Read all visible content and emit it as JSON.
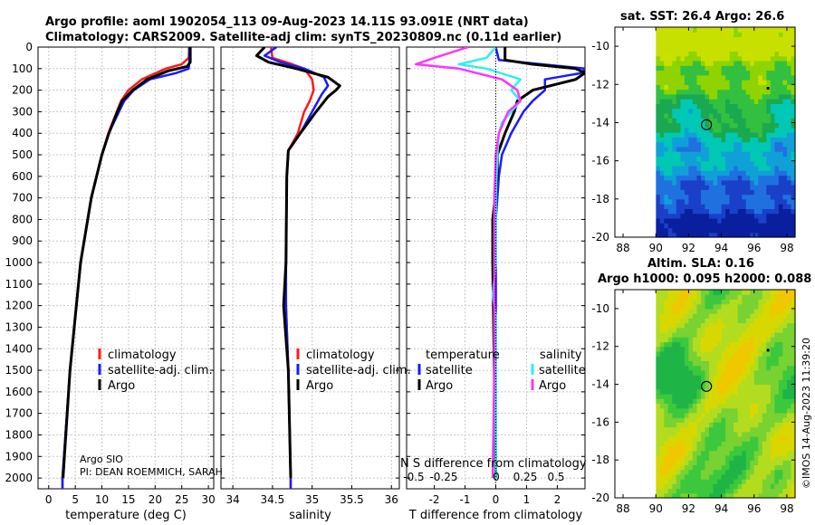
{
  "header": {
    "title1": "Argo profile: aoml 1902054_113 09-Aug-2023 14.11S 93.091E (NRT data)",
    "title2": "Climatology: CARS2009. Satellite-adj clim: synTS_20230809.nc (0.11d earlier)"
  },
  "maps": {
    "sst_title": "sat. SST: 26.4 Argo: 26.6",
    "sla_title1": "Altim. SLA: 0.16",
    "sla_title2": "Argo h1000: 0.095 h2000: 0.088",
    "lon_ticks": [
      "88",
      "90",
      "92",
      "94",
      "96",
      "98"
    ],
    "lat_ticks": [
      "-10",
      "-12",
      "-14",
      "-16",
      "-18",
      "-20"
    ],
    "argo_lon": 93.091,
    "argo_lat": -14.11
  },
  "footer": {
    "credit": "©IMOS 14-Aug-2023 11:39:20",
    "argo_label": "Argo SIO",
    "pi_label": "PI: DEAN ROEMMICH, SARAH",
    "overlap_text": "N S difference from climatology",
    "overlap_ticks": [
      "-0.5",
      "-0.25",
      "0",
      "0.25",
      "0.5"
    ]
  },
  "colors": {
    "climatology": "#ff1a1a",
    "satellite": "#1a1aff",
    "argo": "#000000",
    "argo_sal": "#ff33ff",
    "sat_sal": "#33eeee"
  },
  "chart_data": [
    {
      "type": "line",
      "name": "temperature",
      "xlabel": "temperature (deg C)",
      "xlim": [
        -2,
        31
      ],
      "ylim": [
        2050,
        0
      ],
      "xticks": [
        "0",
        "5",
        "10",
        "15",
        "20",
        "25",
        "30"
      ],
      "yticks": [
        "0",
        "100",
        "200",
        "300",
        "400",
        "500",
        "600",
        "700",
        "800",
        "900",
        "1000",
        "1100",
        "1200",
        "1300",
        "1400",
        "1500",
        "1600",
        "1700",
        "1800",
        "1900",
        "2000"
      ],
      "legend": [
        "climatology",
        "satellite-adj. clim.",
        "Argo"
      ],
      "series": [
        {
          "name": "climatology",
          "depth": [
            0,
            50,
            80,
            100,
            150,
            200,
            250,
            300,
            400,
            500,
            700,
            1000,
            1500,
            2000,
            2050
          ],
          "values": [
            26.4,
            26.3,
            25,
            22,
            17.5,
            15,
            13.6,
            12.8,
            11.2,
            10,
            8,
            6,
            4,
            2.6,
            2.6
          ]
        },
        {
          "name": "satellite-adj. clim.",
          "depth": [
            0,
            70,
            100,
            120,
            150,
            200,
            250,
            300,
            400,
            500,
            700,
            1000,
            1500,
            2000,
            2050
          ],
          "values": [
            26.4,
            26.4,
            26.3,
            24,
            19,
            16,
            14.2,
            13.2,
            11.3,
            10,
            8,
            6,
            4,
            2.6,
            2.6
          ]
        },
        {
          "name": "Argo",
          "depth": [
            0,
            70,
            90,
            110,
            150,
            200,
            250,
            300,
            400,
            500,
            700,
            1000,
            1500,
            2000
          ],
          "values": [
            26.6,
            26.6,
            26.0,
            22.5,
            18.5,
            15.8,
            13.8,
            12.9,
            11.3,
            10,
            8,
            6,
            4,
            2.7
          ]
        }
      ]
    },
    {
      "type": "line",
      "name": "salinity",
      "xlabel": "salinity",
      "xlim": [
        33.85,
        36.1
      ],
      "ylim": [
        2050,
        0
      ],
      "xticks": [
        "34",
        "34.5",
        "35",
        "35.5",
        "36"
      ],
      "legend": [
        "climatology",
        "satellite-adj. clim.",
        "Argo"
      ],
      "series": [
        {
          "name": "climatology",
          "depth": [
            0,
            50,
            80,
            100,
            150,
            200,
            250,
            300,
            400,
            480,
            600,
            1000,
            1200,
            1500,
            2000,
            2050
          ],
          "values": [
            34.48,
            34.5,
            34.75,
            34.9,
            35.0,
            35.02,
            34.97,
            34.9,
            34.82,
            34.7,
            34.68,
            34.67,
            34.67,
            34.7,
            34.73,
            34.73
          ]
        },
        {
          "name": "satellite-adj. clim.",
          "depth": [
            0,
            40,
            70,
            100,
            140,
            180,
            220,
            300,
            400,
            480,
            600,
            1000,
            1200,
            1500,
            2000,
            2050
          ],
          "values": [
            34.55,
            34.4,
            34.6,
            34.9,
            35.15,
            35.2,
            35.12,
            35.0,
            34.85,
            34.7,
            34.68,
            34.67,
            34.67,
            34.7,
            34.73,
            34.73
          ]
        },
        {
          "name": "Argo",
          "depth": [
            0,
            40,
            70,
            100,
            140,
            180,
            200,
            230,
            300,
            400,
            480,
            600,
            1000,
            1200,
            1500,
            2000
          ],
          "values": [
            34.4,
            34.3,
            34.45,
            34.8,
            35.2,
            35.35,
            35.3,
            35.2,
            35.05,
            34.85,
            34.7,
            34.68,
            34.67,
            34.64,
            34.7,
            34.73
          ]
        }
      ]
    },
    {
      "type": "line",
      "name": "difference",
      "xlabel": "T difference from climatology",
      "xlim": [
        -2.9,
        2.9
      ],
      "ylim": [
        2050,
        0
      ],
      "xticks": [
        "-2",
        "-1",
        "0",
        "1",
        "2"
      ],
      "legend_temp_title": "temperature",
      "legend_sal_title": "salinity",
      "legend_temp": [
        "satellite",
        "Argo"
      ],
      "legend_sal": [
        "satellite",
        "Argo"
      ],
      "series": [
        {
          "name": "T satellite",
          "depth": [
            0,
            60,
            80,
            100,
            120,
            150,
            200,
            250,
            300,
            400,
            500,
            600,
            800,
            1000,
            1500,
            2000
          ],
          "values": [
            0,
            0.1,
            1.5,
            2.9,
            2.8,
            1.6,
            1.6,
            1.2,
            0.9,
            0.5,
            0.2,
            0.1,
            0,
            0,
            0,
            0
          ]
        },
        {
          "name": "T Argo",
          "depth": [
            0,
            60,
            80,
            100,
            120,
            150,
            200,
            250,
            300,
            400,
            500,
            600,
            800,
            1000,
            1500,
            2000
          ],
          "values": [
            0.3,
            0.3,
            1.2,
            2.6,
            2.9,
            2.6,
            1.2,
            0.7,
            0.6,
            0.3,
            0.05,
            0.05,
            -0.1,
            -0.1,
            -0.05,
            0
          ]
        },
        {
          "name": "S satellite",
          "depth": [
            0,
            50,
            80,
            100,
            150,
            200,
            250,
            300,
            350,
            400,
            500,
            700,
            1000,
            1150,
            1250,
            1500,
            2000
          ],
          "values": [
            0,
            -0.3,
            -1.2,
            -0.3,
            0.8,
            0.5,
            0.8,
            0.5,
            0.2,
            0.1,
            0.05,
            0,
            0,
            -0.1,
            0,
            0,
            0
          ]
        },
        {
          "name": "S Argo",
          "depth": [
            0,
            50,
            80,
            100,
            150,
            200,
            250,
            300,
            400,
            500,
            700,
            1000,
            1500,
            2000
          ],
          "values": [
            -0.9,
            -2.0,
            -2.6,
            -1.2,
            0.2,
            0.7,
            0.8,
            0.4,
            0.1,
            0,
            -0.05,
            -0.05,
            -0.05,
            -0.1
          ]
        }
      ]
    }
  ]
}
